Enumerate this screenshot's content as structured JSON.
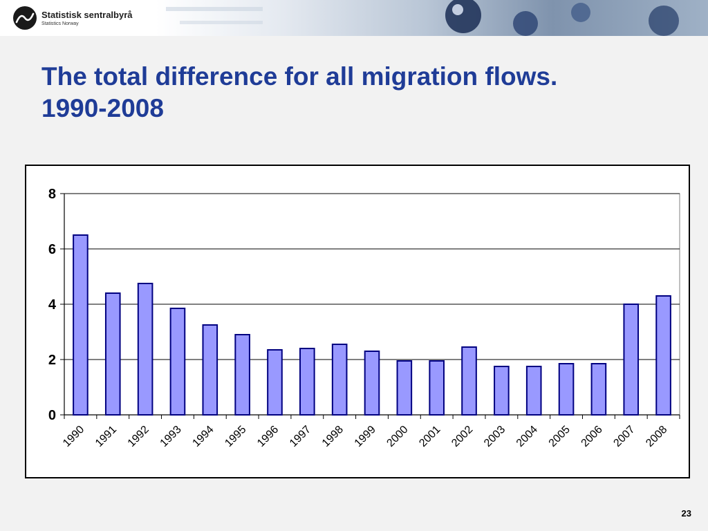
{
  "brand": {
    "name": "Statistisk sentralbyrå",
    "subtitle": "Statistics Norway"
  },
  "slide": {
    "title_line1": "The total difference for all migration flows.",
    "title_line2": "1990-2008",
    "page_number": "23"
  },
  "colors": {
    "title": "#1f3c97",
    "bar_fill": "#9999ff",
    "bar_stroke": "#000080",
    "grid": "#000000"
  },
  "chart_data": {
    "type": "bar",
    "categories": [
      "1990",
      "1991",
      "1992",
      "1993",
      "1994",
      "1995",
      "1996",
      "1997",
      "1998",
      "1999",
      "2000",
      "2001",
      "2002",
      "2003",
      "2004",
      "2005",
      "2006",
      "2007",
      "2008"
    ],
    "values": [
      6.5,
      4.4,
      4.75,
      3.85,
      3.25,
      2.9,
      2.35,
      2.4,
      2.55,
      2.3,
      1.95,
      1.95,
      2.45,
      1.75,
      1.75,
      1.85,
      1.85,
      4.0,
      4.3
    ],
    "yticks": [
      "0",
      "2",
      "4",
      "6",
      "8"
    ],
    "ylim": [
      0,
      8
    ],
    "grid": true,
    "title": "",
    "xlabel": "",
    "ylabel": ""
  }
}
